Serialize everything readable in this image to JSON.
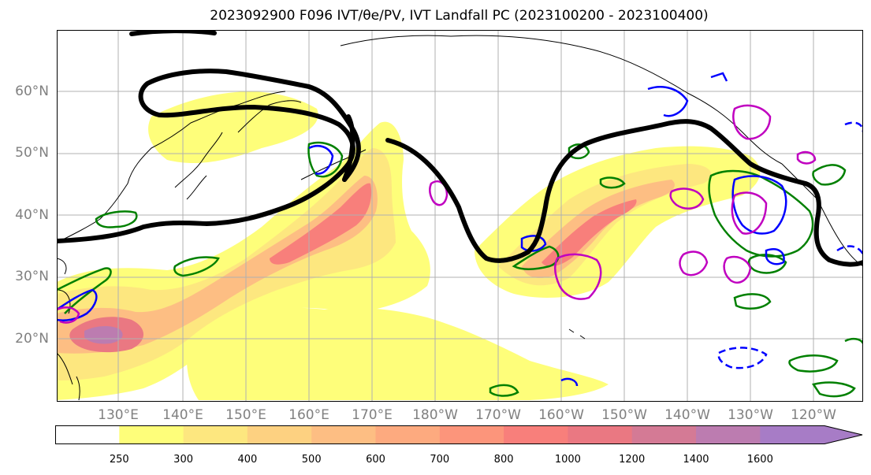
{
  "title": "2023092900 F096 IVT/θe/PV, IVT Landfall PC (2023100200 - 2023100400)",
  "map": {
    "lat_labels": [
      "60°N",
      "50°N",
      "40°N",
      "30°N",
      "20°N"
    ],
    "lon_labels": [
      "130°E",
      "140°E",
      "150°E",
      "160°E",
      "170°E",
      "180°W",
      "170°W",
      "160°W",
      "150°W",
      "140°W",
      "130°W",
      "120°W"
    ],
    "grid": true
  },
  "colorbar": {
    "ticks": [
      "250",
      "300",
      "400",
      "500",
      "600",
      "700",
      "800",
      "1000",
      "1200",
      "1400",
      "1600"
    ],
    "colors": [
      "#ffffff",
      "#fefe7a",
      "#fde77f",
      "#fdd181",
      "#fdbe83",
      "#fdaa7f",
      "#fc957b",
      "#f87f7b",
      "#ea7882",
      "#d47a95",
      "#bc7cb0",
      "#a77cc6"
    ],
    "extend": "max"
  },
  "contour_colors": {
    "jet": "#000000",
    "green": "#008000",
    "blue": "#0000ff",
    "magenta": "#c000c0"
  }
}
